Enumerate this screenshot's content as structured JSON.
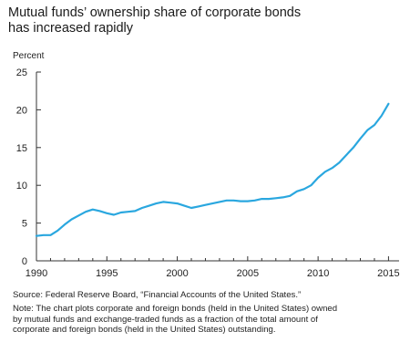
{
  "title": {
    "line1": "Mutual funds’ ownership share of corporate bonds",
    "line2": "has increased rapidly"
  },
  "source": "Source: Federal Reserve Board, “Financial Accounts of the United States.”",
  "note": {
    "line1": "Note: The chart plots corporate and foreign bonds (held in the United States) owned",
    "line2": "by mutual funds and exchange-traded funds as a fraction of the total amount of",
    "line3": "corporate and foreign bonds (held in the United States) outstanding."
  },
  "colors": {
    "line": "#2aa7df",
    "axis": "#333333",
    "text": "#222222"
  },
  "chart_data": {
    "type": "line",
    "title": "Mutual funds’ ownership share of corporate bonds has increased rapidly",
    "xlabel": "",
    "ylabel": "Percent",
    "xlim": [
      1990,
      2015.75
    ],
    "ylim": [
      0,
      25
    ],
    "x_ticks": [
      1990,
      1995,
      2000,
      2005,
      2010,
      2015
    ],
    "x_tick_labels": [
      "1990",
      "1995",
      "2000",
      "2005",
      "2010",
      "2015"
    ],
    "y_ticks": [
      0,
      5,
      10,
      15,
      20,
      25
    ],
    "y_tick_labels": [
      "0",
      "5",
      "10",
      "15",
      "20",
      "25"
    ],
    "grid": false,
    "legend": "none",
    "series": [
      {
        "x": [
          1990,
          1990.5,
          1991,
          1991.5,
          1992,
          1992.5,
          1993,
          1993.5,
          1994,
          1994.5,
          1995,
          1995.5,
          1996,
          1996.5,
          1997,
          1997.5,
          1998,
          1998.5,
          1999,
          1999.5,
          2000,
          2000.5,
          2001,
          2001.5,
          2002,
          2002.5,
          2003,
          2003.5,
          2004,
          2004.5,
          2005,
          2005.5,
          2006,
          2006.5,
          2007,
          2007.5,
          2008,
          2008.5,
          2009,
          2009.5,
          2010,
          2010.5,
          2011,
          2011.5,
          2012,
          2012.5,
          2013,
          2013.5,
          2014,
          2014.5,
          2015
        ],
        "values": [
          3.3,
          3.4,
          3.4,
          4.0,
          4.8,
          5.5,
          6.0,
          6.5,
          6.8,
          6.6,
          6.3,
          6.1,
          6.4,
          6.5,
          6.6,
          7.0,
          7.3,
          7.6,
          7.8,
          7.7,
          7.6,
          7.3,
          7.0,
          7.2,
          7.4,
          7.6,
          7.8,
          8.0,
          8.0,
          7.9,
          7.9,
          8.0,
          8.2,
          8.2,
          8.3,
          8.4,
          8.6,
          9.2,
          9.5,
          10.0,
          11.0,
          11.8,
          12.3,
          13.0,
          14.0,
          15.0,
          16.2,
          17.3,
          18.0,
          19.2,
          20.8
        ]
      }
    ]
  }
}
